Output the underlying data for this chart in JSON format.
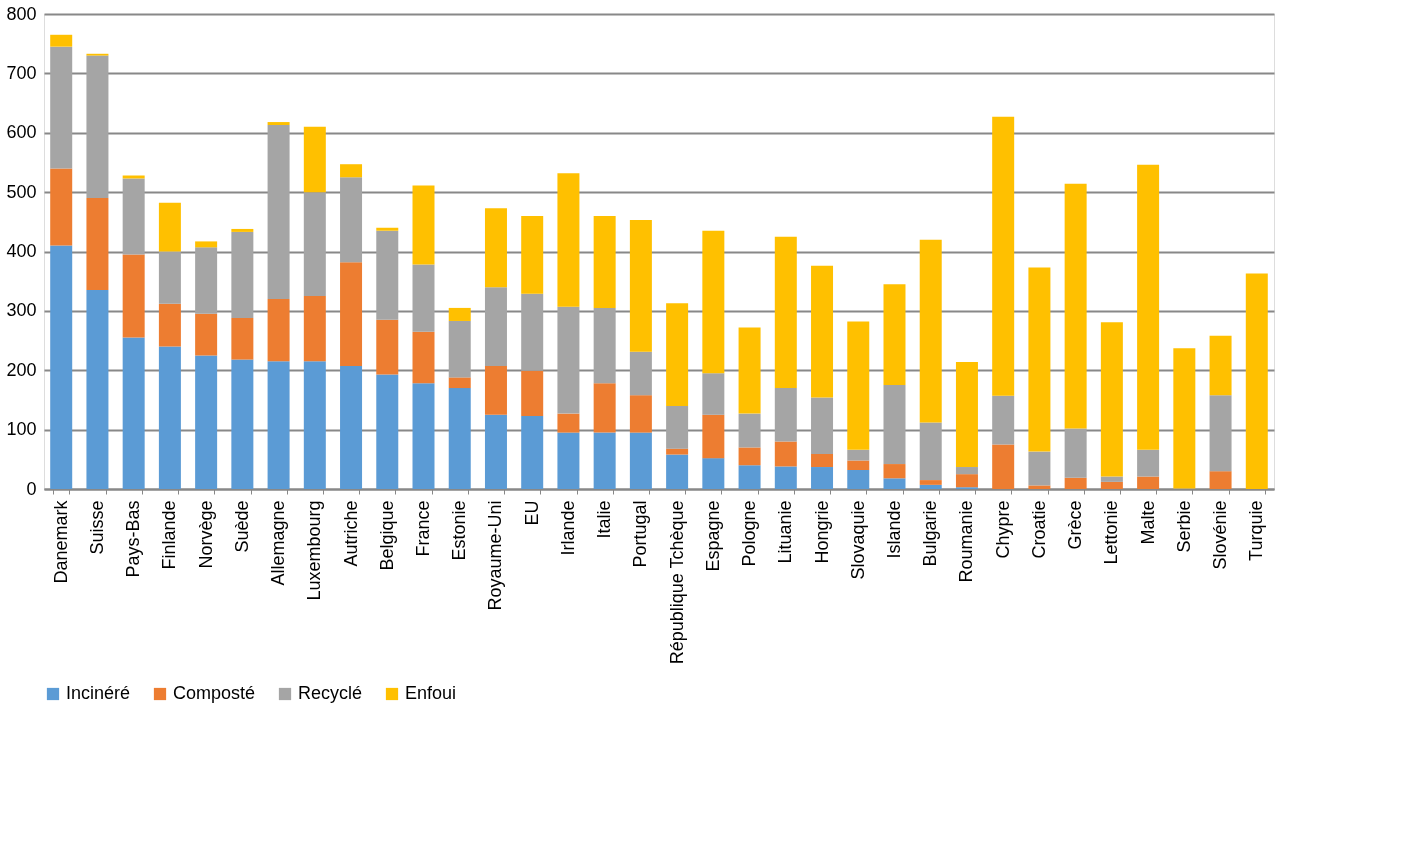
{
  "chart_data": {
    "type": "bar",
    "stacked": true,
    "categories": [
      "Danemark",
      "Suisse",
      "Pays-Bas",
      "Finlande",
      "Norvège",
      "Suède",
      "Allemagne",
      "Luxembourg",
      "Autriche",
      "Belgique",
      "France",
      "Estonie",
      "Royaume-Uni",
      "EU",
      "Irlande",
      "Italie",
      "Portugal",
      "République Tchèque",
      "Espagne",
      "Pologne",
      "Lituanie",
      "Hongrie",
      "Slovaquie",
      "Islande",
      "Bulgarie",
      "Roumanie",
      "Chypre",
      "Croatie",
      "Grèce",
      "Lettonie",
      "Malte",
      "Serbie",
      "Slovénie",
      "Turquie"
    ],
    "series": [
      {
        "name": "Incinéré",
        "color": "#5b9bd5",
        "values": [
          410,
          335,
          255,
          240,
          225,
          218,
          215,
          215,
          207,
          193,
          178,
          170,
          125,
          123,
          95,
          95,
          95,
          58,
          52,
          40,
          38,
          37,
          32,
          18,
          7,
          3,
          0,
          0,
          0,
          0,
          0,
          0,
          0,
          0
        ]
      },
      {
        "name": "Composté",
        "color": "#ed7d31",
        "values": [
          130,
          155,
          140,
          72,
          70,
          70,
          105,
          110,
          175,
          92,
          87,
          18,
          82,
          76,
          32,
          83,
          63,
          10,
          73,
          30,
          42,
          22,
          16,
          24,
          8,
          22,
          75,
          6,
          19,
          12,
          21,
          0,
          30,
          0
        ]
      },
      {
        "name": "Recyclé",
        "color": "#a5a5a5",
        "values": [
          205,
          240,
          128,
          88,
          112,
          145,
          293,
          175,
          143,
          150,
          113,
          95,
          133,
          130,
          180,
          127,
          73,
          72,
          70,
          57,
          90,
          95,
          18,
          133,
          97,
          12,
          82,
          57,
          83,
          9,
          45,
          1,
          128,
          0
        ]
      },
      {
        "name": "Enfoui",
        "color": "#ffc000",
        "values": [
          20,
          3,
          5,
          82,
          10,
          5,
          5,
          110,
          22,
          5,
          133,
          22,
          133,
          131,
          225,
          155,
          222,
          173,
          240,
          145,
          255,
          222,
          216,
          170,
          308,
          177,
          470,
          310,
          412,
          260,
          480,
          236,
          100,
          363
        ]
      }
    ],
    "ylim": [
      0,
      800
    ],
    "yticks": [
      0,
      100,
      200,
      300,
      400,
      500,
      600,
      700,
      800
    ],
    "grid": "y",
    "legend": "bottom"
  }
}
